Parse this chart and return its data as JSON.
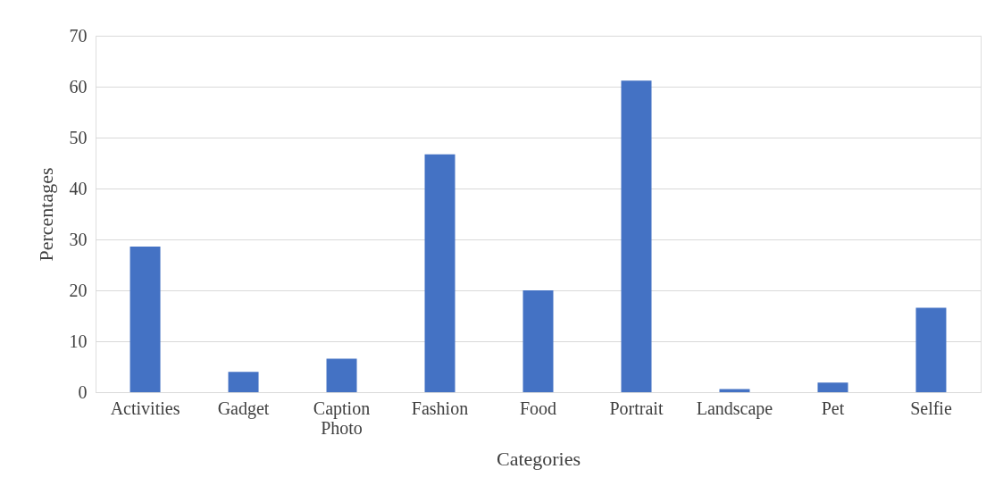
{
  "chart_data": {
    "type": "bar",
    "xlabel": "Categories",
    "ylabel": "Percentages",
    "categories": [
      "Activities",
      "Gadget",
      "Caption Photo",
      "Fashion",
      "Food",
      "Portrait",
      "Landscape",
      "Pet",
      "Selfie"
    ],
    "values": [
      28.6,
      4.0,
      6.6,
      46.7,
      20.0,
      61.2,
      0.6,
      1.9,
      16.6
    ],
    "color": "#4472c4",
    "ylim": [
      0,
      70
    ],
    "yticks": [
      0,
      10,
      20,
      30,
      40,
      50,
      60,
      70
    ],
    "grid": "y"
  }
}
